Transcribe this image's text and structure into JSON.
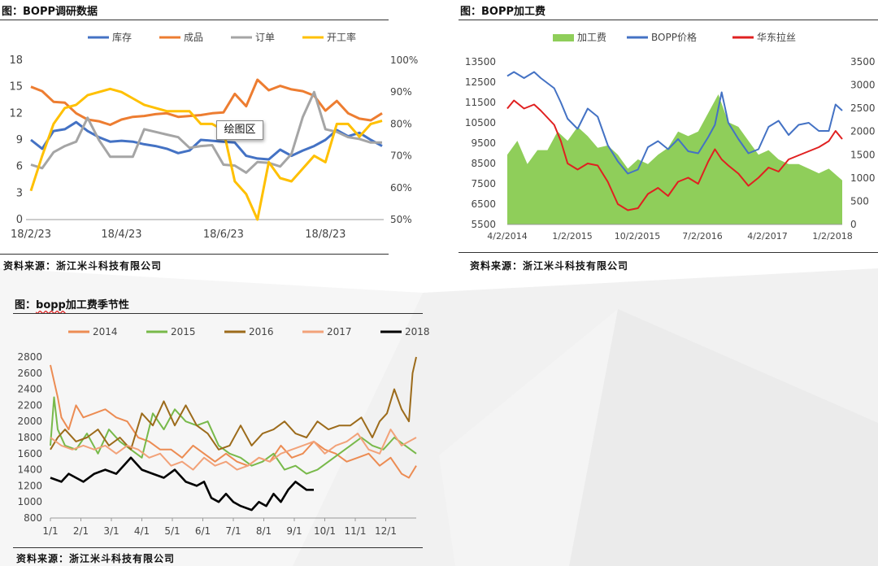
{
  "colors": {
    "blue": "#4472c4",
    "orange": "#ed7d31",
    "gray": "#a5a5a5",
    "yellow": "#ffc000",
    "green": "#8fce5a",
    "red": "#e02020",
    "s2014": "#ec8c53",
    "s2015": "#78b94a",
    "s2016": "#9c6b1b",
    "s2017": "#f2a279",
    "s2018": "#000000"
  },
  "panels": {
    "p1": {
      "title": "图：BOPP调研数据",
      "source": "资料来源：浙江米斗科技有限公司",
      "tooltip": "绘图区"
    },
    "p2": {
      "title": "图：BOPP加工费",
      "source": "资料来源：浙江米斗科技有限公司"
    },
    "p3": {
      "title_prefix": "图：",
      "title_word": "bopp",
      "title_suffix": "加工费季节性",
      "source": "资料来源：浙江米斗科技有限公司"
    }
  },
  "chart_data": [
    {
      "type": "line",
      "title": "",
      "legend": [
        "库存",
        "成品",
        "订单",
        "开工率"
      ],
      "legend_position": "top",
      "x_ticks": [
        "18/2/23",
        "18/4/23",
        "18/6/23",
        "18/8/23"
      ],
      "x_tick_index": [
        0,
        8,
        17,
        26
      ],
      "y_left_ticks": [
        "0",
        "3",
        "6",
        "9",
        "12",
        "15",
        "18"
      ],
      "y_right_ticks": [
        "50%",
        "60%",
        "70%",
        "80%",
        "90%",
        "100%"
      ],
      "ylim_left": [
        0,
        18
      ],
      "ylim_right": [
        50,
        100
      ],
      "grid": false,
      "series": [
        {
          "name": "库存",
          "axis": "left",
          "color_key": "blue",
          "values": [
            9,
            8,
            10,
            10.2,
            11,
            10,
            9.3,
            8.8,
            8.9,
            8.8,
            8.5,
            8.3,
            8.0,
            7.5,
            7.8,
            9,
            8.9,
            8.8,
            8.7,
            7.2,
            6.9,
            6.8,
            7.9,
            7.2,
            7.8,
            8.3,
            9.0,
            10.1,
            9.4,
            9.8,
            9.0,
            8.3
          ]
        },
        {
          "name": "成品",
          "axis": "left",
          "color_key": "orange",
          "values": [
            15,
            14.5,
            13.3,
            13.2,
            12,
            11.3,
            11.1,
            10.7,
            11.3,
            11.6,
            11.7,
            11.9,
            12.0,
            11.6,
            11.7,
            11.8,
            12.0,
            12.1,
            14.2,
            12.8,
            15.8,
            14.6,
            15.1,
            14.7,
            14.5,
            14.0,
            12.3,
            13.4,
            12.0,
            11.4,
            11.2,
            12.0
          ]
        },
        {
          "name": "订单",
          "axis": "left",
          "color_key": "gray",
          "values": [
            6.2,
            5.8,
            7.6,
            8.3,
            8.8,
            11.5,
            9.0,
            7.1,
            7.1,
            7.1,
            10.2,
            9.9,
            9.6,
            9.3,
            8.1,
            8.3,
            8.4,
            6.2,
            6.1,
            5.3,
            6.5,
            6.4,
            6.0,
            7.4,
            11.6,
            14.4,
            10.2,
            9.9,
            9.3,
            9.1,
            8.7,
            8.7
          ]
        },
        {
          "name": "开工率",
          "axis": "right",
          "color_key": "yellow",
          "values": [
            59,
            70,
            80,
            85,
            86,
            89,
            90,
            91,
            90,
            88,
            86,
            85,
            84,
            84,
            84,
            80,
            80,
            78,
            62,
            58,
            50,
            68,
            63,
            62,
            66,
            70,
            68,
            80,
            80,
            76,
            80,
            81
          ]
        }
      ]
    },
    {
      "type": "line",
      "title": "",
      "legend": [
        "加工费",
        "BOPP价格",
        "华东拉丝"
      ],
      "legend_position": "top",
      "x_ticks": [
        "4/2/2014",
        "1/2/2015",
        "10/2/2015",
        "7/2/2016",
        "4/2/2017",
        "1/2/2018"
      ],
      "y_left_ticks": [
        "5500",
        "6500",
        "7500",
        "8500",
        "9500",
        "10500",
        "11500",
        "12500",
        "13500"
      ],
      "y_right_ticks": [
        "0",
        "500",
        "1000",
        "1500",
        "2000",
        "2500",
        "3000",
        "3500"
      ],
      "ylim_left": [
        5500,
        13500
      ],
      "ylim_right": [
        0,
        3500
      ],
      "grid": false,
      "series": [
        {
          "name": "加工费",
          "type": "area",
          "axis": "right",
          "color_key": "green",
          "x": [
            0,
            0.03,
            0.06,
            0.09,
            0.12,
            0.15,
            0.18,
            0.21,
            0.24,
            0.27,
            0.3,
            0.33,
            0.36,
            0.39,
            0.42,
            0.45,
            0.48,
            0.51,
            0.54,
            0.57,
            0.6,
            0.63,
            0.66,
            0.69,
            0.72,
            0.75,
            0.78,
            0.81,
            0.84,
            0.87,
            0.9,
            0.93,
            0.96,
            1.0
          ],
          "values": [
            1500,
            1800,
            1300,
            1600,
            1600,
            2000,
            1800,
            2100,
            1900,
            1650,
            1700,
            1500,
            1200,
            1400,
            1300,
            1500,
            1650,
            2000,
            1900,
            2000,
            2400,
            2800,
            2200,
            2100,
            1800,
            1500,
            1600,
            1400,
            1300,
            1300,
            1200,
            1100,
            1200,
            950
          ]
        },
        {
          "name": "BOPP价格",
          "axis": "left",
          "color_key": "blue",
          "x": [
            0,
            0.02,
            0.05,
            0.08,
            0.1,
            0.14,
            0.16,
            0.18,
            0.21,
            0.24,
            0.27,
            0.3,
            0.33,
            0.36,
            0.39,
            0.42,
            0.45,
            0.48,
            0.51,
            0.54,
            0.57,
            0.6,
            0.62,
            0.64,
            0.66,
            0.69,
            0.72,
            0.75,
            0.78,
            0.81,
            0.84,
            0.87,
            0.9,
            0.93,
            0.96,
            0.98,
            1.0
          ],
          "values": [
            12800,
            13000,
            12700,
            13000,
            12700,
            12200,
            11500,
            10700,
            10200,
            11200,
            10800,
            9400,
            8600,
            8000,
            8200,
            9300,
            9600,
            9200,
            9700,
            9100,
            9000,
            9800,
            10400,
            12000,
            10500,
            9700,
            9000,
            9200,
            10300,
            10600,
            9900,
            10400,
            10500,
            10100,
            10100,
            11400,
            11100
          ]
        },
        {
          "name": "华东拉丝",
          "axis": "left",
          "color_key": "red",
          "x": [
            0,
            0.02,
            0.05,
            0.08,
            0.1,
            0.14,
            0.16,
            0.18,
            0.21,
            0.24,
            0.27,
            0.3,
            0.33,
            0.36,
            0.39,
            0.42,
            0.45,
            0.48,
            0.51,
            0.54,
            0.57,
            0.6,
            0.62,
            0.64,
            0.66,
            0.69,
            0.72,
            0.75,
            0.78,
            0.81,
            0.84,
            0.87,
            0.9,
            0.93,
            0.96,
            0.98,
            1.0
          ],
          "values": [
            11200,
            11600,
            11200,
            11400,
            11100,
            10400,
            9600,
            8500,
            8200,
            8500,
            8400,
            7600,
            6500,
            6200,
            6300,
            7000,
            7300,
            6900,
            7600,
            7800,
            7500,
            8600,
            9200,
            8700,
            8400,
            8000,
            7400,
            7800,
            8300,
            8100,
            8700,
            8900,
            9100,
            9300,
            9600,
            10100,
            9700
          ]
        }
      ]
    },
    {
      "type": "line",
      "title": "",
      "legend": [
        "2014",
        "2015",
        "2016",
        "2017",
        "2018"
      ],
      "legend_position": "top",
      "x_ticks": [
        "1/1",
        "2/1",
        "3/1",
        "4/1",
        "5/1",
        "6/1",
        "7/1",
        "8/1",
        "9/1",
        "10/1",
        "11/1",
        "12/1"
      ],
      "y_ticks": [
        "800",
        "1000",
        "1200",
        "1400",
        "1600",
        "1800",
        "2000",
        "2200",
        "2400",
        "2600",
        "2800"
      ],
      "ylim": [
        800,
        2800
      ],
      "grid": false,
      "series": [
        {
          "name": "2014",
          "color_key": "s2014",
          "x": [
            0,
            0.01,
            0.02,
            0.03,
            0.05,
            0.07,
            0.09,
            0.12,
            0.15,
            0.18,
            0.21,
            0.24,
            0.27,
            0.3,
            0.33,
            0.36,
            0.39,
            0.42,
            0.45,
            0.48,
            0.51,
            0.54,
            0.57,
            0.6,
            0.63,
            0.66,
            0.69,
            0.72,
            0.75,
            0.78,
            0.81,
            0.84,
            0.87,
            0.9,
            0.93,
            0.96,
            0.98,
            1.0
          ],
          "values": [
            2700,
            2500,
            2300,
            2050,
            1900,
            2200,
            2050,
            2100,
            2150,
            2050,
            2000,
            1800,
            1750,
            1650,
            1650,
            1550,
            1700,
            1600,
            1500,
            1600,
            1500,
            1450,
            1550,
            1500,
            1700,
            1550,
            1600,
            1750,
            1650,
            1600,
            1500,
            1550,
            1600,
            1450,
            1550,
            1350,
            1300,
            1450
          ]
        },
        {
          "name": "2015",
          "color_key": "s2015",
          "x": [
            0,
            0.01,
            0.02,
            0.04,
            0.07,
            0.1,
            0.13,
            0.16,
            0.19,
            0.22,
            0.25,
            0.28,
            0.31,
            0.34,
            0.37,
            0.4,
            0.43,
            0.46,
            0.49,
            0.52,
            0.55,
            0.58,
            0.61,
            0.64,
            0.67,
            0.7,
            0.73,
            0.76,
            0.79,
            0.82,
            0.85,
            0.88,
            0.91,
            0.94,
            0.97,
            1.0
          ],
          "values": [
            1700,
            2300,
            1900,
            1700,
            1650,
            1850,
            1600,
            1900,
            1750,
            1650,
            1550,
            2100,
            1900,
            2150,
            2000,
            1950,
            2000,
            1700,
            1600,
            1550,
            1450,
            1500,
            1600,
            1400,
            1450,
            1350,
            1400,
            1500,
            1600,
            1700,
            1800,
            1700,
            1650,
            1800,
            1700,
            1600
          ]
        },
        {
          "name": "2016",
          "color_key": "s2016",
          "x": [
            0,
            0.02,
            0.04,
            0.07,
            0.1,
            0.13,
            0.16,
            0.19,
            0.22,
            0.25,
            0.28,
            0.31,
            0.34,
            0.37,
            0.4,
            0.43,
            0.46,
            0.49,
            0.52,
            0.55,
            0.58,
            0.61,
            0.64,
            0.67,
            0.7,
            0.73,
            0.76,
            0.79,
            0.82,
            0.85,
            0.88,
            0.9,
            0.92,
            0.94,
            0.96,
            0.98,
            0.99,
            1.0
          ],
          "values": [
            1650,
            1800,
            1900,
            1750,
            1800,
            1900,
            1700,
            1800,
            1650,
            2100,
            1950,
            2250,
            1950,
            2200,
            1950,
            1850,
            1650,
            1700,
            1950,
            1700,
            1850,
            1900,
            2000,
            1850,
            1800,
            2000,
            1900,
            1950,
            1950,
            2050,
            1800,
            2000,
            2100,
            2400,
            2150,
            2000,
            2600,
            2800
          ]
        },
        {
          "name": "2017",
          "color_key": "s2017",
          "x": [
            0,
            0.03,
            0.06,
            0.09,
            0.12,
            0.15,
            0.18,
            0.21,
            0.24,
            0.27,
            0.3,
            0.33,
            0.36,
            0.39,
            0.42,
            0.45,
            0.48,
            0.51,
            0.54,
            0.57,
            0.6,
            0.63,
            0.66,
            0.69,
            0.72,
            0.75,
            0.78,
            0.81,
            0.84,
            0.87,
            0.9,
            0.93,
            0.96,
            1.0
          ],
          "values": [
            1800,
            1700,
            1650,
            1700,
            1650,
            1700,
            1600,
            1700,
            1650,
            1550,
            1600,
            1450,
            1500,
            1400,
            1550,
            1450,
            1500,
            1400,
            1450,
            1550,
            1500,
            1600,
            1650,
            1700,
            1750,
            1600,
            1700,
            1750,
            1850,
            1650,
            1600,
            1900,
            1700,
            1800
          ]
        },
        {
          "name": "2018",
          "color_key": "s2018",
          "x": [
            0,
            0.03,
            0.05,
            0.07,
            0.09,
            0.12,
            0.15,
            0.18,
            0.2,
            0.22,
            0.25,
            0.28,
            0.31,
            0.34,
            0.37,
            0.4,
            0.42,
            0.44,
            0.46,
            0.48,
            0.5,
            0.52,
            0.55,
            0.57,
            0.59,
            0.61,
            0.63,
            0.65,
            0.67,
            0.7,
            0.72
          ],
          "values": [
            1300,
            1250,
            1350,
            1300,
            1250,
            1350,
            1400,
            1350,
            1450,
            1550,
            1400,
            1350,
            1300,
            1400,
            1250,
            1200,
            1250,
            1050,
            1000,
            1100,
            1000,
            950,
            900,
            1000,
            950,
            1100,
            1000,
            1150,
            1250,
            1150,
            1150
          ]
        }
      ]
    }
  ]
}
